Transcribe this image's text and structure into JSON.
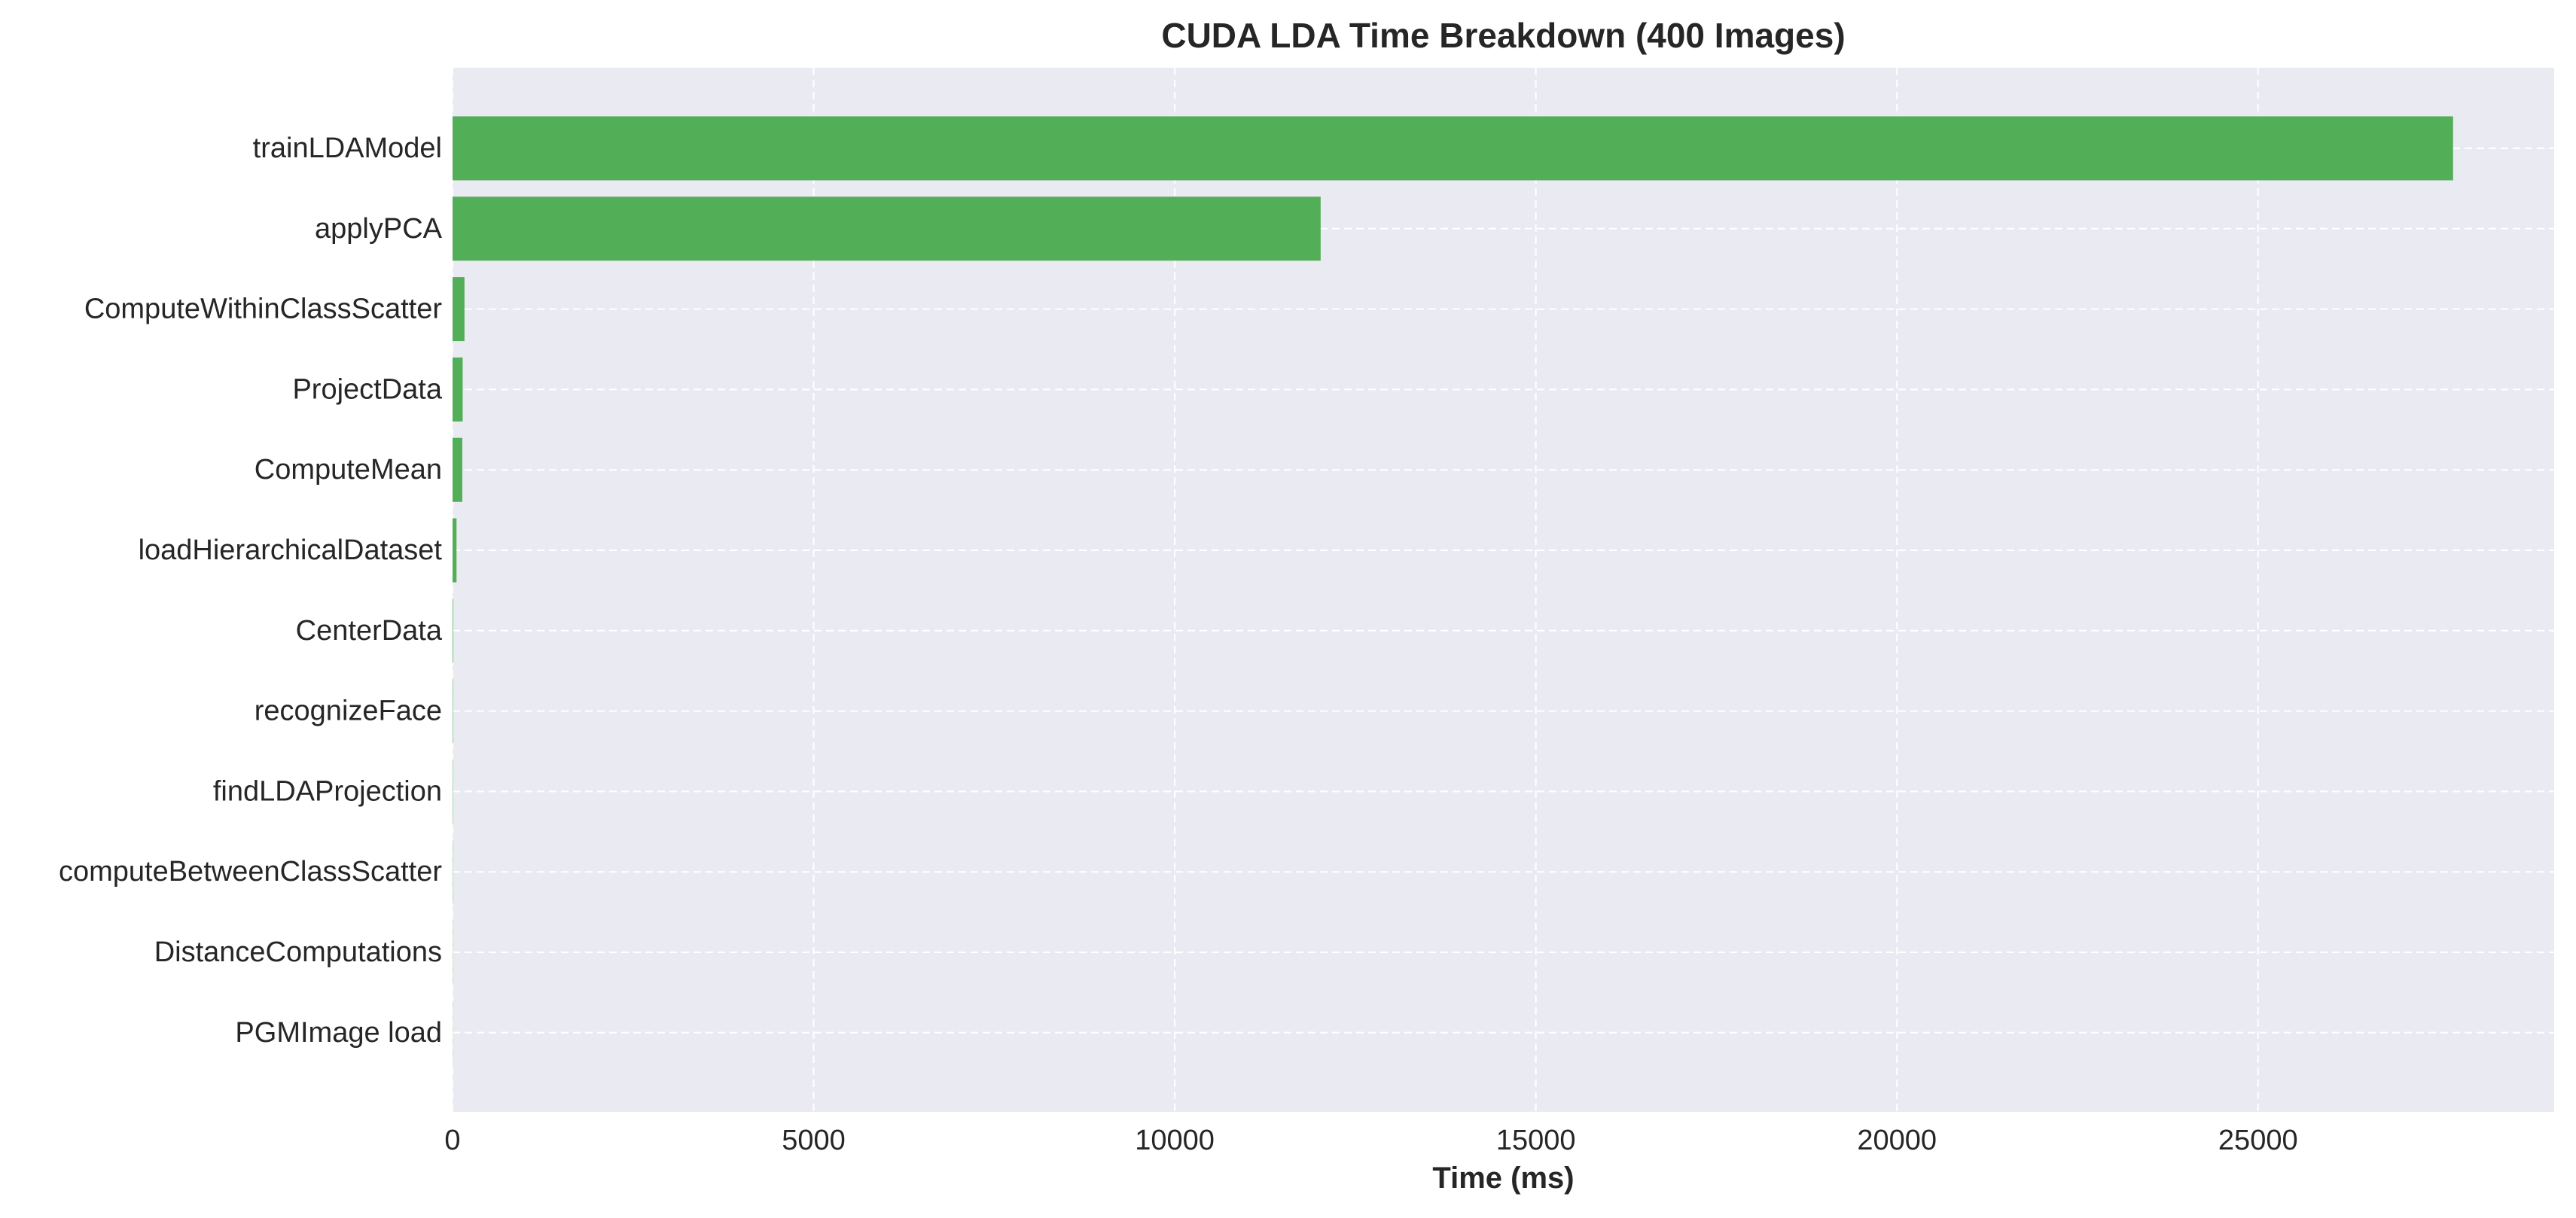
{
  "chart_data": {
    "type": "bar",
    "orientation": "horizontal",
    "title": "CUDA LDA Time Breakdown (400 Images)",
    "xlabel": "Time (ms)",
    "ylabel": "",
    "categories": [
      "trainLDAModel",
      "applyPCA",
      "ComputeWithinClassScatter",
      "ProjectData",
      "ComputeMean",
      "loadHierarchicalDataset",
      "CenterData",
      "recognizeFace",
      "findLDAProjection",
      "computeBetweenClassScatter",
      "DistanceComputations",
      "PGMImage load"
    ],
    "values": [
      27700,
      12020,
      165,
      140,
      135,
      55,
      8,
      6,
      5,
      4,
      3,
      2
    ],
    "xlim": [
      0,
      29100
    ],
    "xticks": [
      0,
      5000,
      10000,
      15000,
      20000,
      25000
    ],
    "xtick_labels": [
      "0",
      "5000",
      "10000",
      "15000",
      "20000",
      "25000"
    ],
    "grid": true,
    "legend": "none",
    "colors": {
      "bar": "#52ae57",
      "plot_background": "#eaeaf2",
      "grid": "#ffffff",
      "text": "#262626"
    }
  }
}
